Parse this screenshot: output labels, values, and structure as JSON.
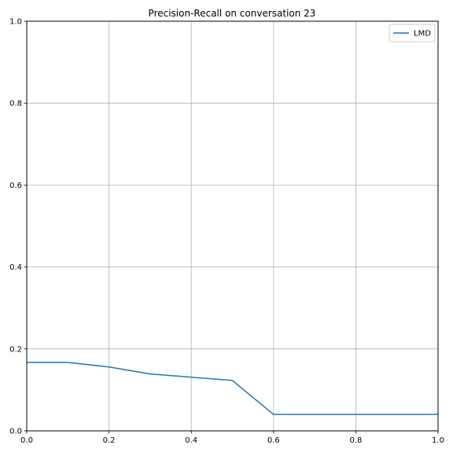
{
  "chart_data": {
    "type": "line",
    "title": "Precision-Recall on conversation 23",
    "xlabel": "",
    "ylabel": "",
    "xlim": [
      0.0,
      1.0
    ],
    "ylim": [
      0.0,
      1.0
    ],
    "xticks": [
      "0.0",
      "0.2",
      "0.4",
      "0.6",
      "0.8",
      "1.0"
    ],
    "yticks": [
      "0.0",
      "0.2",
      "0.4",
      "0.6",
      "0.8",
      "1.0"
    ],
    "grid": true,
    "legend_position": "top-right",
    "series": [
      {
        "name": "LMD",
        "color": "#1f77b4",
        "x": [
          0.0,
          0.1,
          0.2,
          0.3,
          0.4,
          0.5,
          0.6,
          0.7,
          0.8,
          0.9,
          1.0
        ],
        "y": [
          0.167,
          0.167,
          0.156,
          0.139,
          0.131,
          0.123,
          0.04,
          0.04,
          0.04,
          0.04,
          0.04
        ]
      }
    ]
  }
}
